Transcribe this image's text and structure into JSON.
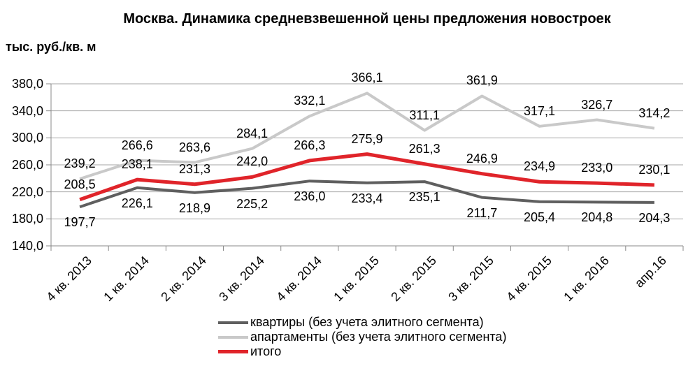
{
  "chart_data": {
    "type": "line",
    "title": "Москва. Динамика средневзвешенной цены предложения новостроек",
    "ylabel": "тыс. руб./кв. м",
    "xlabel": "",
    "categories": [
      "4 кв. 2013",
      "1 кв. 2014",
      "2 кв. 2014",
      "3 кв. 2014",
      "4 кв. 2014",
      "1 кв. 2015",
      "2 кв. 2015",
      "3 кв. 2015",
      "4 кв. 2015",
      "1 кв. 2016",
      "апр.16"
    ],
    "series": [
      {
        "name": "квартиры (без учета элитного сегмента)",
        "color": "#5F5F5F",
        "values": [
          197.7,
          226.1,
          218.9,
          225.2,
          236.0,
          233.4,
          235.1,
          211.7,
          205.4,
          204.8,
          204.3
        ],
        "label_position": "below"
      },
      {
        "name": "апартаменты (без учета элитного сегмента)",
        "color": "#C9C9C9",
        "values": [
          239.2,
          266.6,
          263.6,
          284.1,
          332.1,
          366.1,
          311.1,
          361.9,
          317.1,
          326.7,
          314.2
        ],
        "label_position": "above"
      },
      {
        "name": "итого",
        "color": "#E0242A",
        "values": [
          208.5,
          238.1,
          231.3,
          242.0,
          266.3,
          275.9,
          261.3,
          246.9,
          234.9,
          233.0,
          230.1
        ],
        "label_position": "above"
      }
    ],
    "ylim": [
      140,
      380
    ],
    "y_ticks": [
      140,
      180,
      220,
      260,
      300,
      340,
      380
    ],
    "decimal_separator": ",",
    "grid": true,
    "legend_position": "bottom",
    "colors": {
      "gridline": "#A6A6A6",
      "axis": "#898989",
      "text": "#000000"
    }
  }
}
